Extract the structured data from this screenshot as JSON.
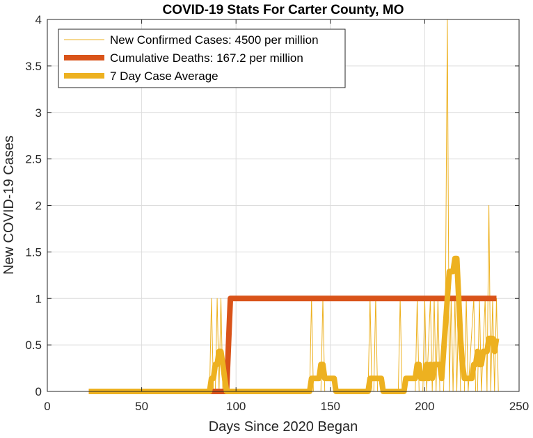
{
  "chart_data": {
    "type": "line",
    "title": "COVID-19 Stats For Carter County, MO",
    "xlabel": "Days Since 2020 Began",
    "ylabel": "New COVID-19 Cases",
    "xlim": [
      0,
      250
    ],
    "ylim": [
      0,
      4
    ],
    "xticks": [
      0,
      50,
      100,
      150,
      200,
      250
    ],
    "yticks": [
      0,
      0.5,
      1,
      1.5,
      2,
      2.5,
      3,
      3.5,
      4
    ],
    "grid": true,
    "legend_position": "top-left",
    "series": [
      {
        "name": "New Confirmed Cases: 4500 per million",
        "color": "#EDB120",
        "style": "thin",
        "points": [
          [
            22,
            0
          ],
          [
            86,
            0
          ],
          [
            87,
            1
          ],
          [
            88,
            0
          ],
          [
            89,
            0
          ],
          [
            90,
            1
          ],
          [
            91,
            0
          ],
          [
            92,
            1
          ],
          [
            93,
            0
          ],
          [
            139,
            0
          ],
          [
            140,
            1
          ],
          [
            141,
            0
          ],
          [
            145,
            0
          ],
          [
            146,
            1
          ],
          [
            147,
            0
          ],
          [
            170,
            0
          ],
          [
            171,
            1
          ],
          [
            172,
            0
          ],
          [
            173,
            0
          ],
          [
            174,
            1
          ],
          [
            175,
            0
          ],
          [
            186,
            0
          ],
          [
            187,
            1
          ],
          [
            188,
            0
          ],
          [
            195,
            0
          ],
          [
            196,
            1
          ],
          [
            197,
            0
          ],
          [
            199,
            0
          ],
          [
            200,
            1
          ],
          [
            201,
            0
          ],
          [
            203,
            1
          ],
          [
            204,
            0
          ],
          [
            205,
            1
          ],
          [
            206,
            0
          ],
          [
            207,
            1
          ],
          [
            208,
            0
          ],
          [
            210,
            0
          ],
          [
            211,
            1
          ],
          [
            212,
            4
          ],
          [
            213,
            0
          ],
          [
            214,
            1
          ],
          [
            215,
            0
          ],
          [
            216,
            1
          ],
          [
            217,
            0
          ],
          [
            218,
            1
          ],
          [
            219,
            0
          ],
          [
            221,
            0
          ],
          [
            222,
            1
          ],
          [
            223,
            0
          ],
          [
            226,
            1
          ],
          [
            227,
            0
          ],
          [
            228,
            0
          ],
          [
            229,
            1
          ],
          [
            230,
            0
          ],
          [
            232,
            1
          ],
          [
            233,
            0
          ],
          [
            234,
            2
          ],
          [
            235,
            0
          ],
          [
            236,
            1
          ],
          [
            237,
            0
          ],
          [
            238,
            1
          ],
          [
            239,
            0
          ]
        ]
      },
      {
        "name": "Cumulative Deaths: 167.2 per million",
        "color": "#D95319",
        "style": "thick",
        "points": [
          [
            22,
            0
          ],
          [
            95,
            0
          ],
          [
            97,
            1
          ],
          [
            238,
            1
          ]
        ]
      },
      {
        "name": "7 Day Case Average",
        "color": "#EDB120",
        "style": "thick",
        "points": [
          [
            22,
            0
          ],
          [
            86,
            0
          ],
          [
            87,
            0.14
          ],
          [
            88,
            0.14
          ],
          [
            89,
            0.29
          ],
          [
            90,
            0.29
          ],
          [
            91,
            0.43
          ],
          [
            92,
            0.43
          ],
          [
            93,
            0.29
          ],
          [
            94,
            0.14
          ],
          [
            95,
            0
          ],
          [
            139,
            0
          ],
          [
            140,
            0.14
          ],
          [
            144,
            0.14
          ],
          [
            145,
            0.29
          ],
          [
            146,
            0.29
          ],
          [
            147,
            0.14
          ],
          [
            152,
            0.14
          ],
          [
            153,
            0
          ],
          [
            170,
            0
          ],
          [
            171,
            0.14
          ],
          [
            177,
            0.14
          ],
          [
            178,
            0
          ],
          [
            189,
            0
          ],
          [
            190,
            0.14
          ],
          [
            195,
            0.14
          ],
          [
            196,
            0.29
          ],
          [
            197,
            0.29
          ],
          [
            198,
            0.14
          ],
          [
            200,
            0.14
          ],
          [
            201,
            0.29
          ],
          [
            202,
            0.14
          ],
          [
            203,
            0.29
          ],
          [
            204,
            0.14
          ],
          [
            205,
            0.29
          ],
          [
            208,
            0.29
          ],
          [
            209,
            0.14
          ],
          [
            210,
            0.43
          ],
          [
            211,
            0.71
          ],
          [
            212,
            1.0
          ],
          [
            213,
            1.29
          ],
          [
            215,
            1.29
          ],
          [
            216,
            1.43
          ],
          [
            217,
            1.43
          ],
          [
            218,
            1.0
          ],
          [
            219,
            0.57
          ],
          [
            220,
            0.29
          ],
          [
            221,
            0.14
          ],
          [
            225,
            0.14
          ],
          [
            226,
            0.29
          ],
          [
            227,
            0.29
          ],
          [
            228,
            0.43
          ],
          [
            229,
            0.29
          ],
          [
            230,
            0.29
          ],
          [
            231,
            0.43
          ],
          [
            232,
            0.43
          ],
          [
            233,
            0.43
          ],
          [
            234,
            0.57
          ],
          [
            236,
            0.57
          ],
          [
            237,
            0.43
          ],
          [
            238,
            0.57
          ]
        ]
      }
    ]
  }
}
